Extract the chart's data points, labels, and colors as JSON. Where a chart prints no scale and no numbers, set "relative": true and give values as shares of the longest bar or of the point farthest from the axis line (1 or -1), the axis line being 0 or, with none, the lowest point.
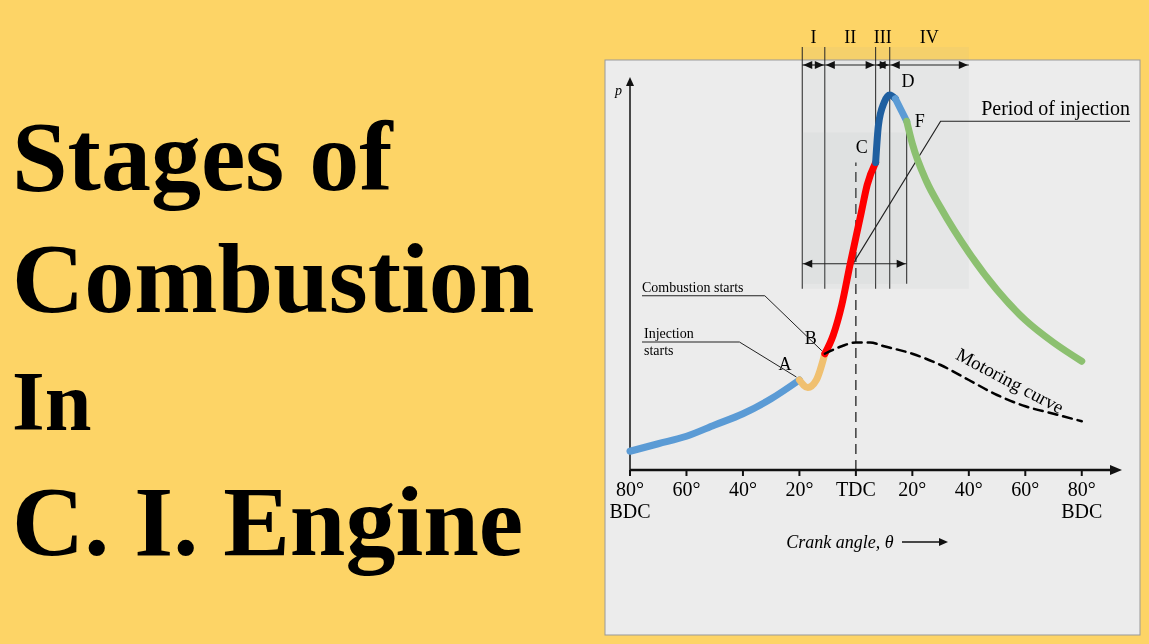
{
  "chart_data": {
    "type": "line",
    "title": "Stages of\nCombustion\nIn\nC. I. Engine",
    "xlabel": "Crank angle, θ",
    "ylabel": "p",
    "relative": true,
    "xlim": [
      -80,
      90
    ],
    "xticks": [
      {
        "value": -80,
        "label": "80°\nBDC"
      },
      {
        "value": -60,
        "label": "60°"
      },
      {
        "value": -40,
        "label": "40°"
      },
      {
        "value": -20,
        "label": "20°"
      },
      {
        "value": 0,
        "label": "TDC"
      },
      {
        "value": 20,
        "label": "20°"
      },
      {
        "value": 40,
        "label": "40°"
      },
      {
        "value": 60,
        "label": "60°"
      },
      {
        "value": 80,
        "label": "80°\nBDC"
      }
    ],
    "series": [
      {
        "color": "#5b9bd5",
        "x": [
          -80,
          -70,
          -60,
          -50,
          -40,
          -30,
          -20
        ],
        "values": [
          0.05,
          0.07,
          0.09,
          0.12,
          0.15,
          0.19,
          0.24
        ]
      },
      {
        "color": "#f0c070",
        "x": [
          -20,
          -17,
          -14,
          -11
        ],
        "values": [
          0.24,
          0.22,
          0.24,
          0.31
        ]
      },
      {
        "color": "#ff0000",
        "x": [
          -11,
          -8,
          -5,
          -2,
          0,
          2,
          4,
          7
        ],
        "values": [
          0.31,
          0.36,
          0.44,
          0.55,
          0.62,
          0.69,
          0.76,
          0.82
        ]
      },
      {
        "color": "#1f5fa0",
        "x": [
          7,
          8,
          10,
          12,
          14
        ],
        "values": [
          0.82,
          0.92,
          0.98,
          1.0,
          0.99
        ]
      },
      {
        "color": "#5b9bd5",
        "x": [
          14,
          16,
          18
        ],
        "values": [
          0.99,
          0.96,
          0.93
        ]
      },
      {
        "color": "#8cc070",
        "x": [
          18,
          20,
          25,
          30,
          40,
          50,
          60,
          70,
          80
        ],
        "values": [
          0.93,
          0.87,
          0.77,
          0.7,
          0.58,
          0.48,
          0.4,
          0.34,
          0.29
        ]
      },
      {
        "color": "#000000",
        "line_style": "dashed",
        "x": [
          -11,
          -5,
          0,
          5,
          10,
          20,
          30,
          40,
          50,
          60,
          70,
          80
        ],
        "values": [
          0.31,
          0.33,
          0.34,
          0.34,
          0.33,
          0.31,
          0.28,
          0.24,
          0.2,
          0.17,
          0.15,
          0.13
        ]
      }
    ],
    "ref_lines": [
      {
        "axis": "x",
        "value": 0,
        "line_style": "dashed"
      }
    ],
    "bands": [
      {
        "axis": "x",
        "from": -19,
        "to": -11,
        "label": "I"
      },
      {
        "axis": "x",
        "from": -11,
        "to": 7,
        "label": "II"
      },
      {
        "axis": "x",
        "from": 7,
        "to": 12,
        "label": "III"
      },
      {
        "axis": "x",
        "from": 12,
        "to": 40,
        "label": "IV"
      },
      {
        "axis": "x",
        "from": -19,
        "to": 18,
        "label": "Period of injection"
      }
    ],
    "annotations": [
      {
        "text": "A",
        "x": -20,
        "y": 0.24
      },
      {
        "text": "B",
        "x": -11,
        "y": 0.31
      },
      {
        "text": "C",
        "x": 7,
        "y": 0.82
      },
      {
        "text": "D",
        "x": 14,
        "y": 0.99
      },
      {
        "text": "F",
        "x": 18,
        "y": 0.93
      },
      {
        "text": "Injection starts",
        "x": -20,
        "y": 0.24
      },
      {
        "text": "Combustion starts",
        "x": -11,
        "y": 0.31
      },
      {
        "text": "Motoring curve",
        "x": 35,
        "y": 0.26
      }
    ]
  }
}
